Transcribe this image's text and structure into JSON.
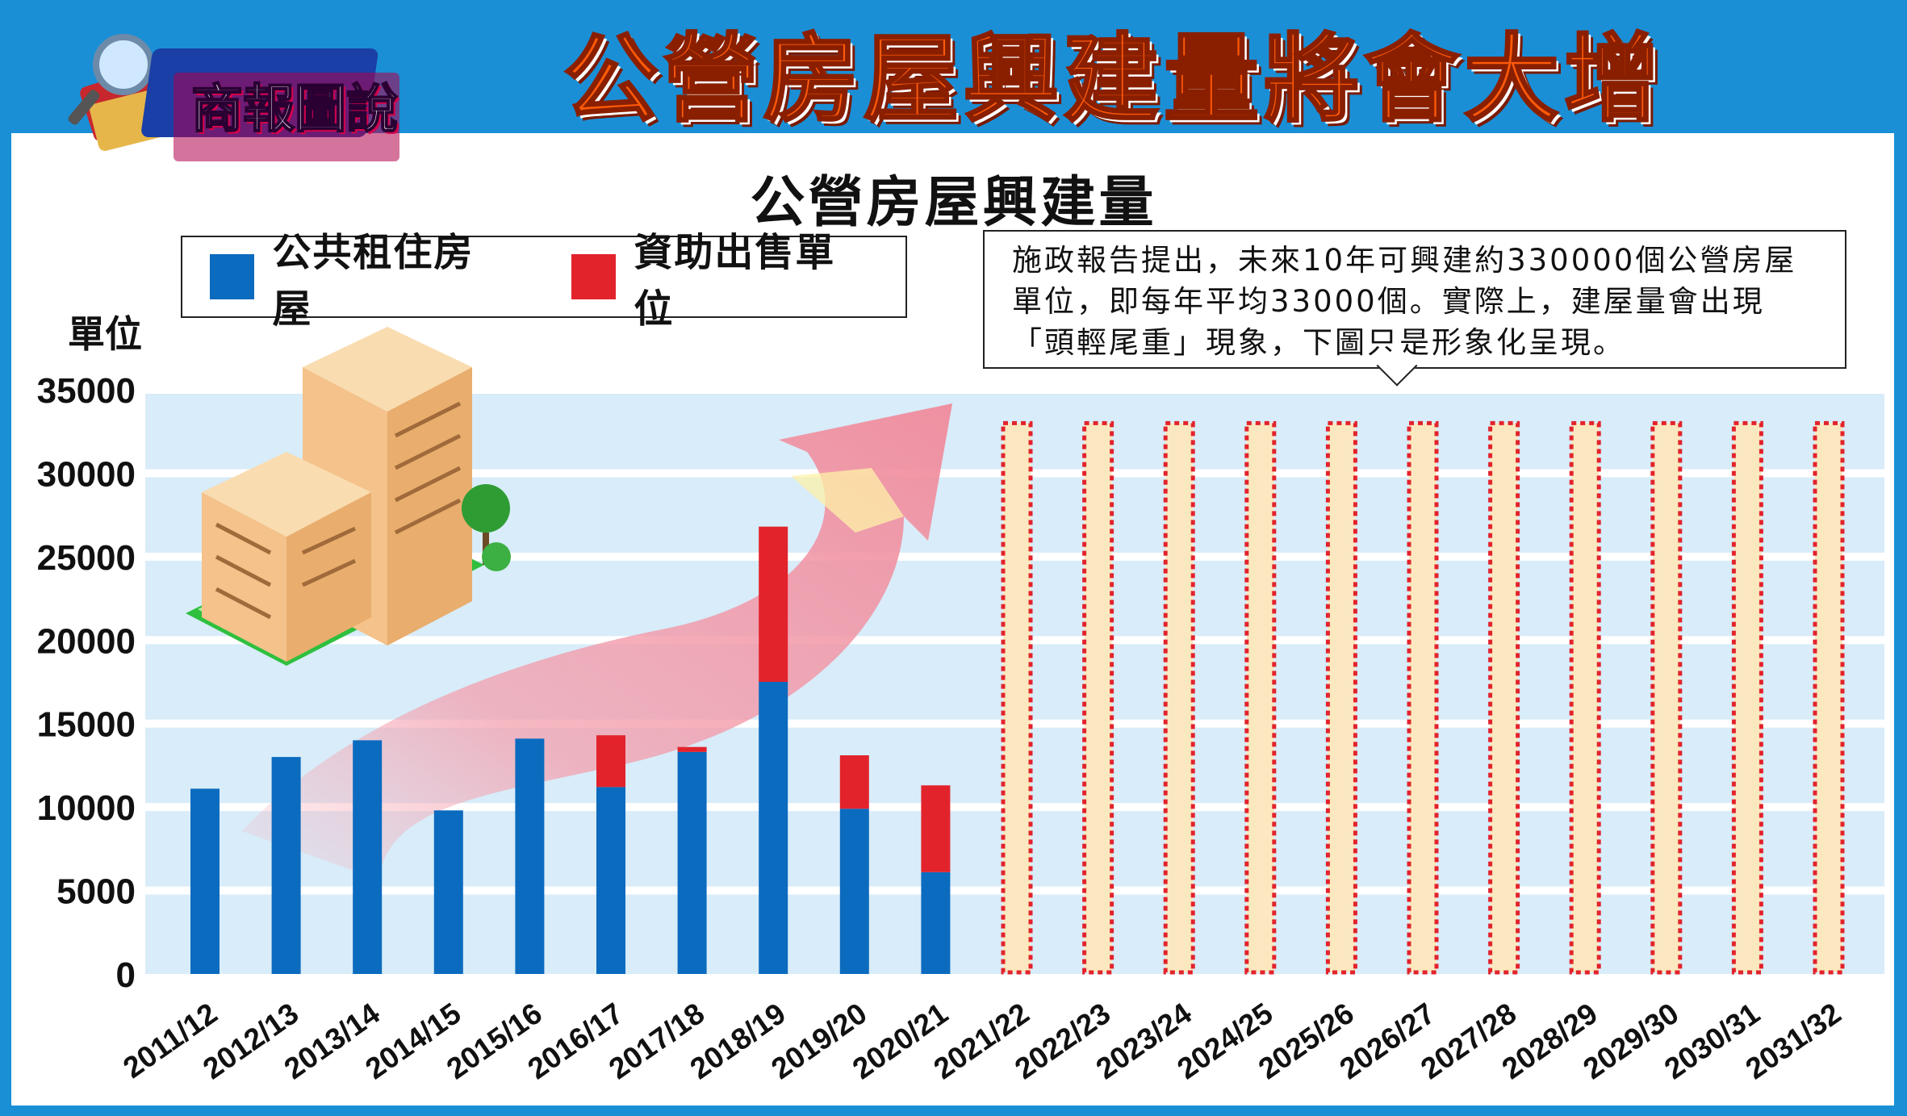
{
  "header": {
    "badge": "商報圖說",
    "headline": "公營房屋興建量將會大增"
  },
  "note": "施政報告提出，未來10年可興建約330000個公營房屋單位，即每年平均33000個。實際上，建屋量會出現「頭輕尾重」現象，下圖只是形象化呈現。",
  "chart_data": {
    "type": "bar",
    "title": "公營房屋興建量",
    "ylabel": "單位",
    "xlabel": "",
    "ylim": [
      0,
      35000
    ],
    "yticks": [
      "35000",
      "30000",
      "25000",
      "20000",
      "15000",
      "10000",
      "5000",
      "0"
    ],
    "grid": true,
    "legend_position": "top-left",
    "categories": [
      "2011/12",
      "2012/13",
      "2013/14",
      "2014/15",
      "2015/16",
      "2016/17",
      "2017/18",
      "2018/19",
      "2019/20",
      "2020/21",
      "2021/22",
      "2022/23",
      "2023/24",
      "2024/25",
      "2025/26",
      "2026/27",
      "2027/28",
      "2028/29",
      "2029/30",
      "2030/31",
      "2031/32"
    ],
    "series": [
      {
        "name": "公共租住房屋",
        "color": "#0b6bbf",
        "values": [
          11100,
          13000,
          14000,
          9800,
          14100,
          11200,
          13300,
          17500,
          9900,
          6100,
          null,
          null,
          null,
          null,
          null,
          null,
          null,
          null,
          null,
          null,
          null
        ]
      },
      {
        "name": "資助出售單位",
        "color": "#e2232c",
        "values": [
          0,
          0,
          0,
          0,
          0,
          3100,
          300,
          9300,
          3200,
          5200,
          null,
          null,
          null,
          null,
          null,
          null,
          null,
          null,
          null,
          null,
          null
        ]
      }
    ],
    "projection": {
      "start_index": 10,
      "value": 33000,
      "fill": "#fbe8c0",
      "border": "#e2232c"
    }
  }
}
